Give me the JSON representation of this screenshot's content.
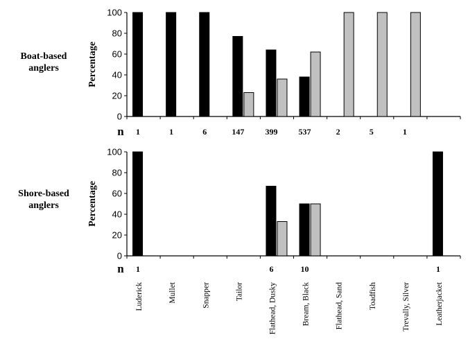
{
  "chart_data": [
    {
      "type": "bar",
      "panel_label": [
        "Boat-based",
        "anglers"
      ],
      "ylabel": "Percentage",
      "ylim": [
        0,
        100
      ],
      "yticks": [
        0,
        20,
        40,
        60,
        80,
        100
      ],
      "categories": [
        "Luderick",
        "Mullet",
        "Snapper",
        "Tailor",
        "Flathead, Dusky",
        "Bream, Black",
        "Flathead, Sand",
        "Toadfish",
        "Trevally, Silver",
        "Leatherjacket"
      ],
      "series": [
        {
          "values": [
            100,
            100,
            100,
            77,
            64,
            38,
            0,
            0,
            0,
            0
          ]
        },
        {
          "values": [
            0,
            0,
            0,
            23,
            36,
            62,
            100,
            100,
            100,
            0
          ]
        }
      ],
      "n_label": "n",
      "n_values": [
        "1",
        "1",
        "6",
        "147",
        "399",
        "537",
        "2",
        "5",
        "1",
        ""
      ]
    },
    {
      "type": "bar",
      "panel_label": [
        "Shore-based",
        "anglers"
      ],
      "ylabel": "Percentage",
      "ylim": [
        0,
        100
      ],
      "yticks": [
        0,
        20,
        40,
        60,
        80,
        100
      ],
      "categories": [
        "Luderick",
        "Mullet",
        "Snapper",
        "Tailor",
        "Flathead, Dusky",
        "Bream, Black",
        "Flathead, Sand",
        "Toadfish",
        "Trevally, Silver",
        "Leatherjacket"
      ],
      "series": [
        {
          "values": [
            100,
            0,
            0,
            0,
            67,
            50,
            0,
            0,
            0,
            100
          ]
        },
        {
          "values": [
            0,
            0,
            0,
            0,
            33,
            50,
            0,
            0,
            0,
            0
          ]
        }
      ],
      "n_label": "n",
      "n_values": [
        "1",
        "",
        "",
        "",
        "6",
        "10",
        "",
        "",
        "",
        "1"
      ]
    }
  ],
  "colors": {
    "series1": "#000000",
    "series2": "#c0c0c0"
  }
}
